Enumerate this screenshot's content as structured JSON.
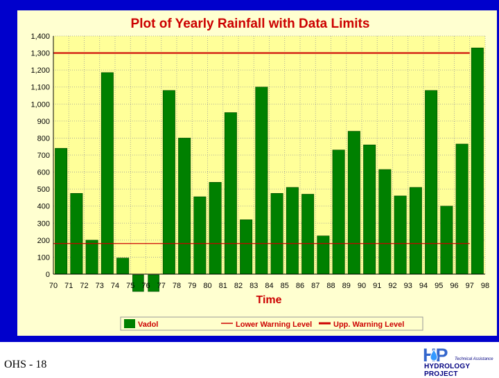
{
  "chart_data": {
    "type": "bar",
    "title": "Plot of Yearly Rainfall with Data Limits",
    "xlabel": "Time",
    "ylabel": "",
    "ylim": [
      0,
      1400
    ],
    "y_ticks": [
      "0",
      "100",
      "200",
      "300",
      "400",
      "500",
      "600",
      "700",
      "800",
      "900",
      "1,000",
      "1,100",
      "1,200",
      "1,300",
      "1,400"
    ],
    "x_ticks": [
      "70",
      "71",
      "72",
      "73",
      "74",
      "75",
      "76",
      "77",
      "78",
      "79",
      "80",
      "81",
      "82",
      "83",
      "84",
      "85",
      "86",
      "87",
      "88",
      "89",
      "90",
      "91",
      "92",
      "93",
      "94",
      "95",
      "96",
      "97",
      "98"
    ],
    "categories": [
      "70",
      "71",
      "72",
      "73",
      "74",
      "75",
      "76",
      "77",
      "78",
      "79",
      "80",
      "81",
      "82",
      "83",
      "84",
      "85",
      "86",
      "87",
      "88",
      "89",
      "90",
      "91",
      "92",
      "93",
      "94",
      "95",
      "96",
      "97"
    ],
    "series": [
      {
        "name": "Vadol",
        "color": "#008000",
        "values": [
          740,
          475,
          200,
          1185,
          95,
          null,
          null,
          1080,
          800,
          455,
          540,
          950,
          320,
          1100,
          475,
          510,
          470,
          225,
          730,
          840,
          760,
          615,
          460,
          510,
          1080,
          400,
          765,
          1330
        ]
      }
    ],
    "missing_markers": [
      "75",
      "76"
    ],
    "limits": [
      {
        "name": "Lower Warning Level",
        "value": 180,
        "color": "#cc0000",
        "width": "thin"
      },
      {
        "name": "Upp. Warning Level",
        "value": 1300,
        "color": "#cc0000",
        "width": "thick"
      }
    ],
    "grid": true,
    "legend_position": "bottom"
  },
  "footer": {
    "slide_code": "OHS - 18",
    "logo_letters": "HP",
    "logo_subtitle": "Technical Assistance",
    "logo_text": "HYDROLOGY PROJECT"
  },
  "colors": {
    "slide_background": "#0000cc",
    "plot_panel": "#ffffd0",
    "title": "#cc0000",
    "bar": "#008000",
    "limit_line": "#cc0000"
  }
}
